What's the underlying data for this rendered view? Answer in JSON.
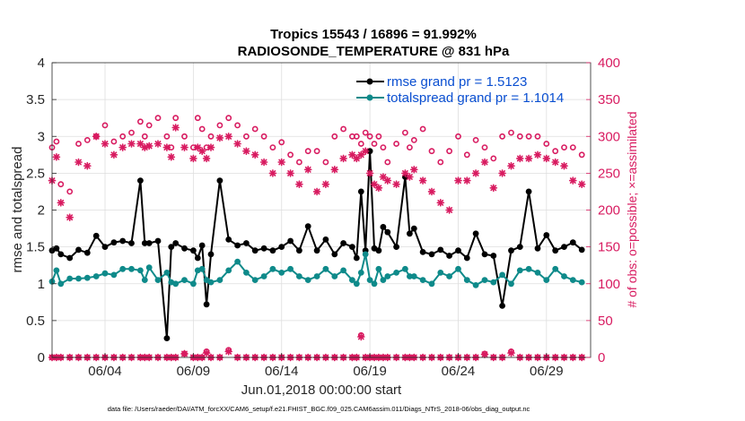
{
  "figure": {
    "title_line1": "Tropics 15543 / 16896 = 91.992%",
    "title_line2": "RADIOSONDE_TEMPERATURE @ 831 hPa",
    "xlabel": "Jun.01,2018 00:00:00 start",
    "footer": "data file: /Users/raeder/DAI/ATM_forcXX/CAM6_setup/f.e21.FHIST_BGC.f09_025.CAM6assim.011/Diags_NTrS_2018-06/obs_diag_output.nc"
  },
  "colors": {
    "rmse": "#000000",
    "spread": "#0e8a8a",
    "obs": "#d81b60",
    "legend_text": "#0a4fd1"
  },
  "chart_data": {
    "type": "line",
    "title": "Tropics 15543 / 16896 = 91.992%  RADIOSONDE_TEMPERATURE @ 831 hPa",
    "xlabel": "Jun.01,2018 00:00:00 start",
    "ylabel": "rmse and totalspread",
    "y2label": "# of obs: o=possible; ×=assimilated",
    "xlim": [
      1,
      31.5
    ],
    "ylim": [
      0,
      4
    ],
    "y2lim": [
      0,
      400
    ],
    "xticks": [
      4,
      9,
      14,
      19,
      24,
      29
    ],
    "xticklabels": [
      "06/04",
      "06/09",
      "06/14",
      "06/19",
      "06/24",
      "06/29"
    ],
    "yticks": [
      0,
      0.5,
      1,
      1.5,
      2,
      2.5,
      3,
      3.5,
      4
    ],
    "yticklabels": [
      "0",
      "0.5",
      "1",
      "1.5",
      "2",
      "2.5",
      "3",
      "3.5",
      "4"
    ],
    "y2ticks": [
      0,
      50,
      100,
      150,
      200,
      250,
      300,
      350,
      400
    ],
    "y2ticklabels": [
      "0",
      "50",
      "100",
      "150",
      "200",
      "250",
      "300",
      "350",
      "400"
    ],
    "legend": [
      {
        "name": "rmse",
        "label": "rmse grand pr = 1.5123"
      },
      {
        "name": "totalspread",
        "label": "totalspread grand pr = 1.1014"
      }
    ],
    "x": [
      1,
      1.25,
      1.5,
      2,
      2.5,
      3,
      3.5,
      4,
      4.5,
      5,
      5.5,
      6,
      6.25,
      6.5,
      7,
      7.5,
      7.75,
      8,
      8.5,
      9,
      9.25,
      9.5,
      9.75,
      10,
      10.5,
      11,
      11.5,
      12,
      12.5,
      13,
      13.5,
      14,
      14.5,
      15,
      15.5,
      16,
      16.5,
      17,
      17.5,
      18,
      18.25,
      18.5,
      18.75,
      19,
      19.25,
      19.5,
      19.75,
      20,
      20.5,
      21,
      21.25,
      21.5,
      22,
      22.5,
      23,
      23.5,
      24,
      24.5,
      25,
      25.5,
      26,
      26.5,
      27,
      27.5,
      28,
      28.5,
      29,
      29.5,
      30,
      30.5,
      31
    ],
    "series": [
      {
        "name": "rmse",
        "values": [
          1.45,
          1.48,
          1.4,
          1.35,
          1.46,
          1.42,
          1.65,
          1.5,
          1.56,
          1.58,
          1.55,
          2.4,
          1.55,
          1.55,
          1.58,
          0.26,
          1.5,
          1.55,
          1.48,
          1.45,
          1.35,
          1.52,
          0.72,
          1.4,
          2.4,
          1.6,
          1.52,
          1.55,
          1.45,
          1.48,
          1.45,
          1.5,
          1.58,
          1.45,
          1.78,
          1.45,
          1.6,
          1.4,
          1.55,
          1.5,
          1.35,
          2.25,
          1.45,
          2.8,
          1.48,
          1.45,
          1.77,
          1.7,
          1.5,
          2.45,
          1.68,
          1.75,
          1.43,
          1.4,
          1.46,
          1.38,
          1.45,
          1.35,
          1.68,
          1.4,
          1.38,
          0.7,
          1.45,
          1.5,
          2.25,
          1.48,
          1.66,
          1.45,
          1.5,
          1.56,
          1.46
        ],
        "marker": "filled-circle",
        "line": "solid"
      },
      {
        "name": "totalspread",
        "values": [
          1.03,
          1.18,
          1.0,
          1.07,
          1.07,
          1.08,
          1.1,
          1.14,
          1.12,
          1.2,
          1.2,
          1.18,
          1.05,
          1.22,
          1.05,
          1.15,
          1.02,
          1.0,
          1.05,
          1.0,
          1.18,
          1.2,
          1.05,
          1.02,
          1.05,
          1.18,
          1.3,
          1.15,
          1.05,
          1.1,
          1.2,
          1.15,
          1.2,
          1.1,
          1.05,
          1.1,
          1.2,
          1.1,
          1.18,
          1.05,
          1.0,
          1.15,
          1.4,
          1.05,
          1.0,
          1.2,
          1.05,
          1.1,
          1.15,
          1.2,
          1.1,
          1.1,
          1.05,
          1.0,
          1.15,
          1.1,
          1.2,
          1.05,
          0.98,
          1.05,
          1.02,
          1.12,
          1.0,
          1.18,
          1.2,
          1.15,
          1.05,
          1.2,
          1.1,
          1.05,
          1.02
        ],
        "marker": "filled-circle",
        "line": "solid"
      },
      {
        "name": "obs_possible",
        "axis": "right",
        "values": [
          285,
          293,
          235,
          225,
          290,
          295,
          300,
          315,
          293,
          300,
          305,
          320,
          300,
          315,
          325,
          300,
          285,
          325,
          300,
          285,
          325,
          310,
          285,
          300,
          315,
          325,
          315,
          300,
          310,
          300,
          285,
          292,
          275,
          265,
          280,
          280,
          265,
          300,
          310,
          300,
          300,
          290,
          305,
          300,
          290,
          300,
          285,
          265,
          290,
          305,
          285,
          295,
          310,
          280,
          265,
          280,
          300,
          275,
          295,
          285,
          270,
          300,
          305,
          300,
          300,
          300,
          290,
          280,
          285,
          285,
          275
        ],
        "marker": "open-circle",
        "line": "none"
      },
      {
        "name": "obs_assimilated",
        "axis": "right",
        "values": [
          240,
          272,
          210,
          190,
          265,
          260,
          300,
          290,
          275,
          285,
          290,
          290,
          285,
          287,
          290,
          285,
          272,
          312,
          285,
          270,
          285,
          280,
          270,
          285,
          298,
          300,
          290,
          280,
          275,
          265,
          250,
          265,
          250,
          235,
          255,
          225,
          235,
          255,
          270,
          275,
          270,
          275,
          280,
          250,
          235,
          230,
          245,
          240,
          235,
          250,
          245,
          255,
          240,
          225,
          210,
          200,
          240,
          240,
          250,
          265,
          230,
          250,
          260,
          270,
          270,
          275,
          270,
          265,
          260,
          240,
          235
        ],
        "marker": "asterisk",
        "line": "none"
      },
      {
        "name": "obs_possible_low",
        "axis": "right",
        "values": [
          0,
          0,
          0,
          0,
          0,
          0,
          0,
          0,
          0,
          0,
          0,
          0,
          0,
          0,
          0,
          0,
          0,
          0,
          5,
          0,
          0,
          0,
          8,
          0,
          0,
          10,
          0,
          0,
          0,
          0,
          0,
          0,
          0,
          0,
          0,
          0,
          0,
          0,
          0,
          0,
          0,
          30,
          0,
          0,
          0,
          0,
          0,
          0,
          0,
          0,
          0,
          0,
          0,
          0,
          0,
          0,
          0,
          0,
          0,
          5,
          0,
          0,
          8,
          0,
          0,
          0,
          0,
          0,
          0,
          0,
          0
        ],
        "marker": "open-circle",
        "line": "none"
      },
      {
        "name": "obs_assimilated_low",
        "axis": "right",
        "values": [
          0,
          0,
          0,
          0,
          0,
          0,
          0,
          0,
          0,
          0,
          0,
          0,
          0,
          0,
          0,
          0,
          0,
          0,
          5,
          0,
          0,
          0,
          6,
          0,
          0,
          8,
          0,
          0,
          0,
          0,
          0,
          0,
          0,
          0,
          0,
          0,
          0,
          0,
          0,
          0,
          0,
          28,
          0,
          0,
          0,
          0,
          0,
          0,
          0,
          0,
          0,
          0,
          0,
          0,
          0,
          0,
          0,
          0,
          0,
          4,
          0,
          0,
          6,
          0,
          0,
          0,
          0,
          0,
          0,
          0,
          0
        ],
        "marker": "asterisk",
        "line": "none"
      }
    ]
  }
}
